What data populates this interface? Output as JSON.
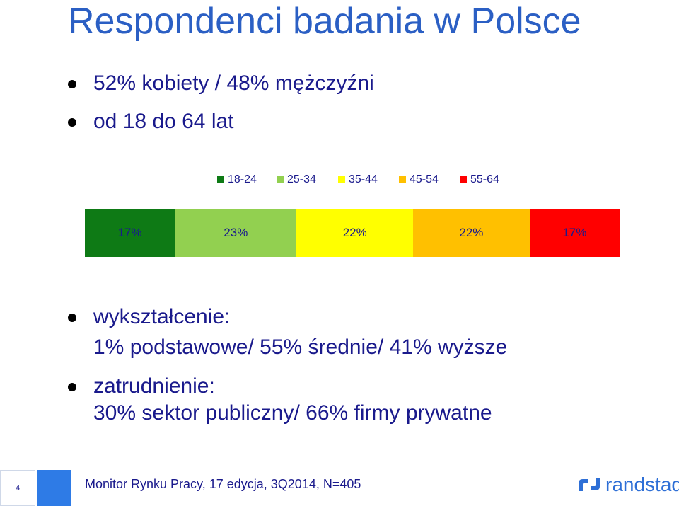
{
  "title": "Respondenci badania w Polsce",
  "bullets_top": [
    "52% kobiety / 48% mężczyźni",
    "od 18 do 64 lat"
  ],
  "chart_data": {
    "type": "bar",
    "stacked": true,
    "orientation": "horizontal",
    "categories": [
      "18-24",
      "25-34",
      "35-44",
      "45-54",
      "55-64"
    ],
    "values": [
      17,
      23,
      22,
      22,
      17
    ],
    "labels": [
      "17%",
      "23%",
      "22%",
      "22%",
      "17%"
    ],
    "colors": [
      "#0e7a15",
      "#92d050",
      "#ffff00",
      "#ffc000",
      "#ff0000"
    ],
    "legend_position": "top"
  },
  "bullets_bottom": [
    {
      "line1": "wykształcenie:",
      "line2": "1% podstawowe/ 55% średnie/ 41% wyższe"
    },
    {
      "line1": "zatrudnienie:",
      "line2": "30% sektor publiczny/ 66% firmy prywatne"
    }
  ],
  "footer": {
    "page_number": "4",
    "source": "Monitor Rynku Pracy, 17 edycja, 3Q2014, N=405",
    "logo_text": "randstad"
  }
}
